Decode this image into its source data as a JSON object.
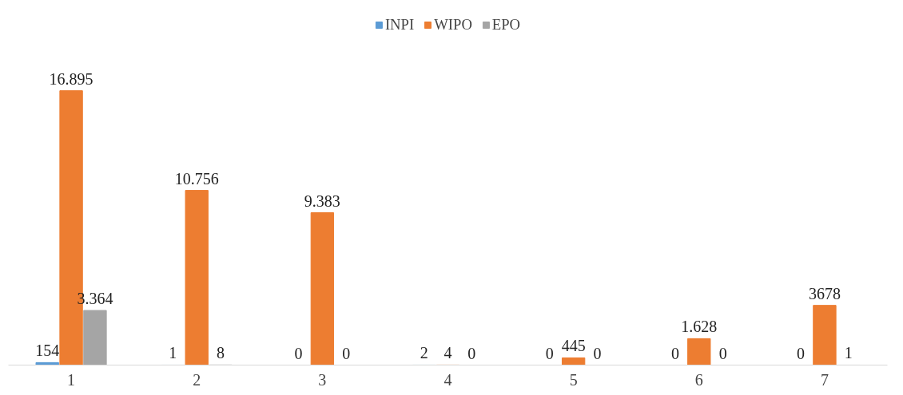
{
  "chart_data": {
    "type": "bar",
    "categories": [
      "1",
      "2",
      "3",
      "4",
      "5",
      "6",
      "7"
    ],
    "series": [
      {
        "name": "INPI",
        "color": "#5b9bd5",
        "values": [
          154,
          1,
          0,
          2,
          0,
          0,
          0
        ],
        "value_labels": [
          "154",
          "1",
          "0",
          "2",
          "0",
          "0",
          "0"
        ]
      },
      {
        "name": "WIPO",
        "color": "#ed7d31",
        "values": [
          16895,
          10756,
          9383,
          4,
          445,
          1628,
          3678
        ],
        "value_labels": [
          "16.895",
          "10.756",
          "9.383",
          "4",
          "445",
          "1.628",
          "3678"
        ]
      },
      {
        "name": "EPO",
        "color": "#a5a5a5",
        "values": [
          3364,
          8,
          0,
          0,
          0,
          0,
          1
        ],
        "value_labels": [
          "3.364",
          "8",
          "0",
          "0",
          "0",
          "0",
          "1"
        ]
      }
    ],
    "legend": "top",
    "grid": false
  }
}
